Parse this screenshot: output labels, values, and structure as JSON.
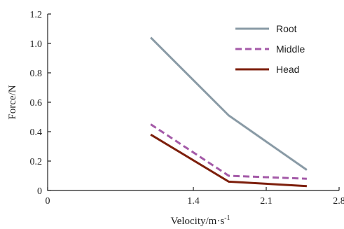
{
  "chart_data": {
    "type": "line",
    "xlabel": "Velocity/m·s",
    "xlabel_sup": "-1",
    "ylabel": "Force/N",
    "xlim": [
      0,
      2.8
    ],
    "ylim": [
      0,
      1.2
    ],
    "xticks": [
      "0",
      "1.4",
      "2.1",
      "2.8"
    ],
    "xtick_values": [
      0,
      1.4,
      2.1,
      2.8
    ],
    "yticks": [
      "0",
      "0.2",
      "0.4",
      "0.6",
      "0.8",
      "1.0",
      "1.2"
    ],
    "ytick_values": [
      0,
      0.2,
      0.4,
      0.6,
      0.8,
      1.0,
      1.2
    ],
    "x": [
      0.99,
      1.74,
      2.49
    ],
    "grid": false,
    "legend_position": "top-right",
    "series": [
      {
        "name": "Root",
        "values": [
          1.04,
          0.51,
          0.14
        ],
        "color": "#8a9ba6",
        "dash": "solid"
      },
      {
        "name": "Middle",
        "values": [
          0.45,
          0.1,
          0.08
        ],
        "color": "#a45aa8",
        "dash": "dashed"
      },
      {
        "name": "Head",
        "values": [
          0.38,
          0.06,
          0.03
        ],
        "color": "#7d1f0c",
        "dash": "solid"
      }
    ]
  }
}
